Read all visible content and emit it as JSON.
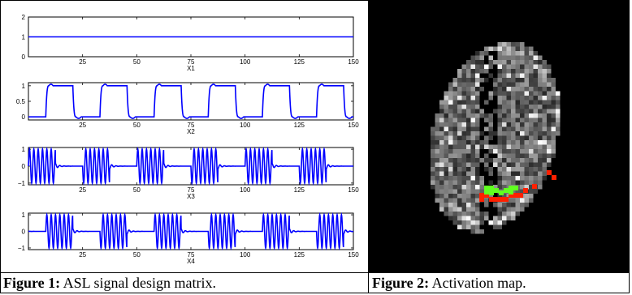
{
  "captions": {
    "fig1_label": "Figure 1:",
    "fig1_text": "ASL signal design matrix.",
    "fig2_label": "Figure 2:",
    "fig2_text": "Activation map."
  },
  "chart_data": [
    {
      "type": "line",
      "xlabel": "X1",
      "xlim": [
        0,
        150
      ],
      "ylim": [
        0,
        2
      ],
      "xticks": [
        25,
        50,
        75,
        100,
        125,
        150
      ],
      "yticks": [
        0,
        1,
        2
      ],
      "series": [
        {
          "kind": "constant",
          "value": 1,
          "color": "#0000ff"
        }
      ]
    },
    {
      "type": "line",
      "xlabel": "X2",
      "xlim": [
        0,
        150
      ],
      "ylim": [
        -0.1,
        1.1
      ],
      "xticks": [
        25,
        50,
        75,
        100,
        125,
        150
      ],
      "yticks": [
        0,
        0.5,
        1
      ],
      "ytick_labels": [
        "0",
        "0.5",
        "1"
      ],
      "series": [
        {
          "kind": "boxcar",
          "period": 25,
          "on_start": 8,
          "on_length": 12.5,
          "low": 0,
          "high": 1,
          "overshoot": 0.05,
          "color": "#0000ff"
        }
      ]
    },
    {
      "type": "line",
      "xlabel": "X3",
      "xlim": [
        0,
        150
      ],
      "ylim": [
        -1.1,
        1.1
      ],
      "xticks": [
        25,
        50,
        75,
        100,
        125,
        150
      ],
      "yticks": [
        -1,
        0,
        1
      ],
      "series": [
        {
          "kind": "modulated",
          "period": 25,
          "on_start": 0,
          "on_length": 12.5,
          "osc_period": 2,
          "amplitude": 1,
          "color": "#0000ff"
        }
      ]
    },
    {
      "type": "line",
      "xlabel": "X4",
      "xlim": [
        0,
        150
      ],
      "ylim": [
        -1.1,
        1.1
      ],
      "xticks": [
        25,
        50,
        75,
        100,
        125,
        150
      ],
      "yticks": [
        -1,
        0,
        1
      ],
      "series": [
        {
          "kind": "modulated",
          "period": 25,
          "on_start": 8,
          "on_length": 12.5,
          "osc_period": 2,
          "amplitude": 1,
          "color": "#0000ff"
        }
      ]
    }
  ],
  "activation_map": {
    "background": "#000000",
    "colors": {
      "tissue": "#9a9a9a",
      "bright": "#ffffff",
      "activation_red": "#ff2000",
      "activation_green": "#60ff20"
    }
  }
}
